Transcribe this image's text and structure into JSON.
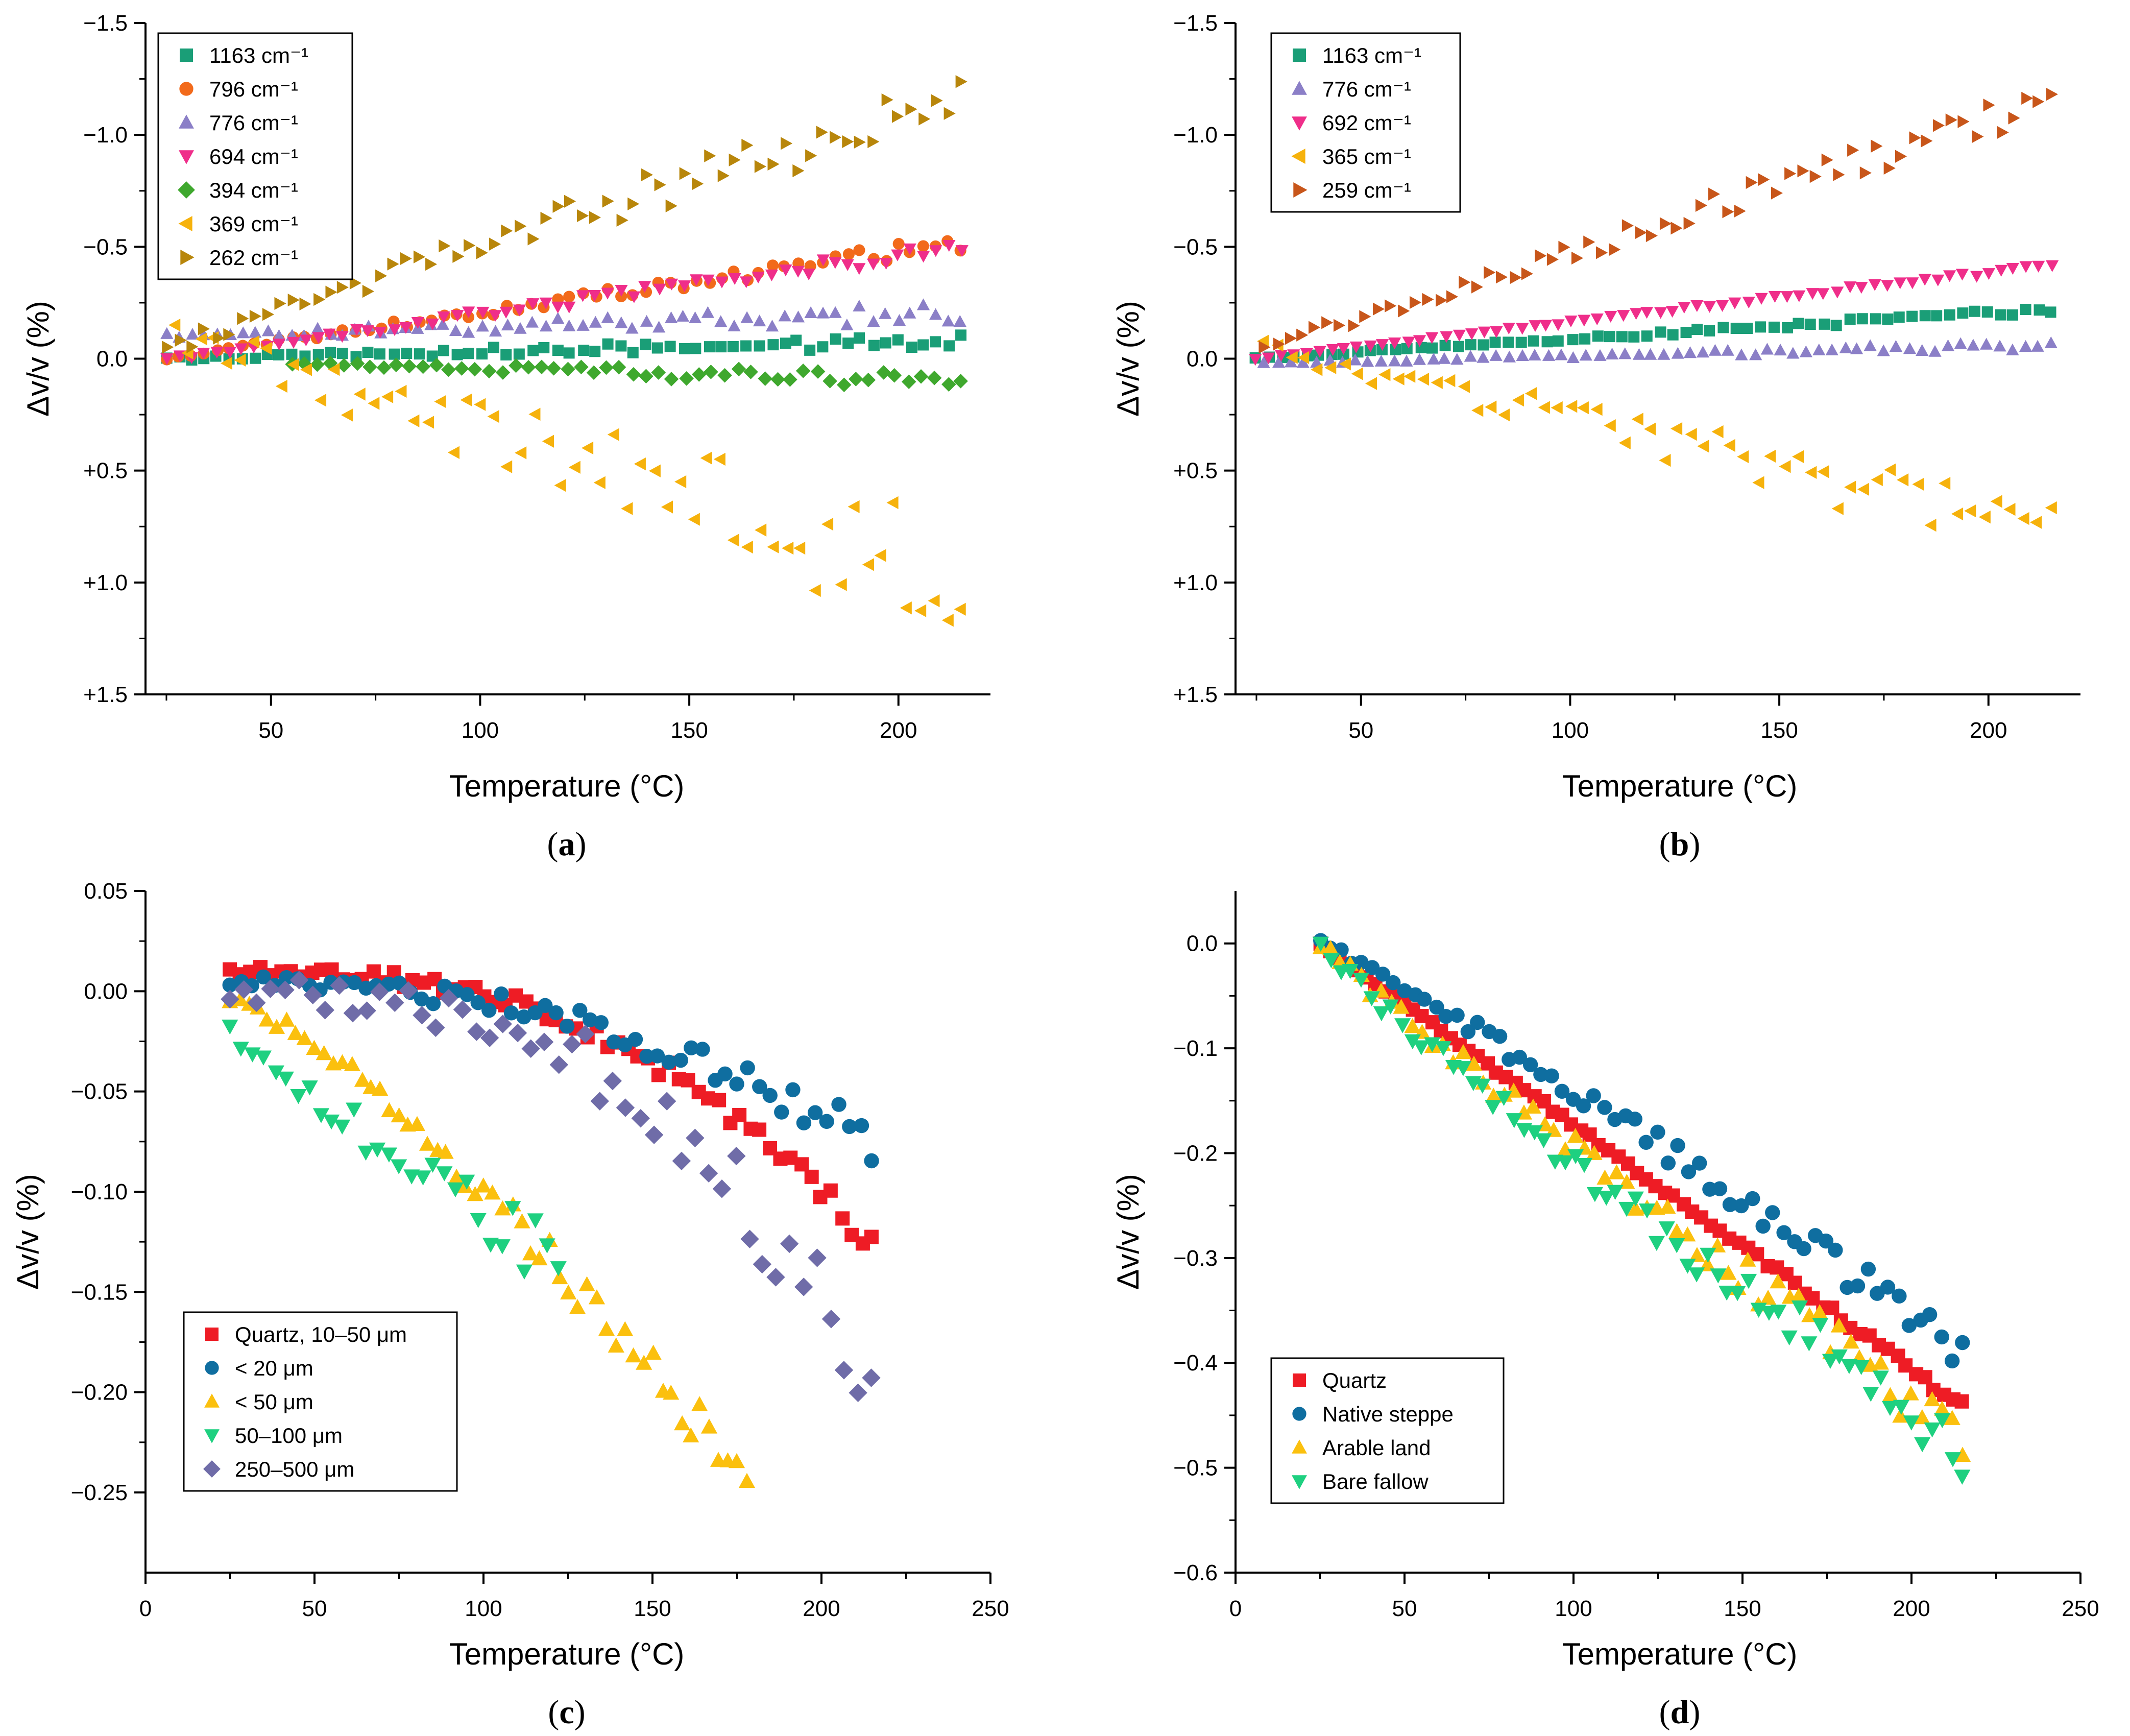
{
  "figure": {
    "panels": [
      "a",
      "b",
      "c",
      "d"
    ]
  },
  "chart_data": [
    {
      "id": "a",
      "panel_label": "a",
      "type": "scatter",
      "xlabel": "Temperature (°C)",
      "ylabel": "Δv/v (%)",
      "xlim": [
        20,
        222
      ],
      "ylim": [
        -1.5,
        1.5
      ],
      "y_inverted": true,
      "xticks": [
        50,
        100,
        150,
        200
      ],
      "yticks": [
        -1.5,
        -1.0,
        -0.5,
        0.0,
        0.5,
        1.0,
        1.5
      ],
      "ytick_labels": [
        "−1.5",
        "−1.0",
        "−0.5",
        "0.0",
        "+0.5",
        "+1.0",
        "+1.5"
      ],
      "legend_position": "top-left",
      "series": [
        {
          "name": "1163 cm⁻¹",
          "color": "#1a9e77",
          "marker": "square",
          "x0": 25,
          "x1": 215,
          "n": 64,
          "y0": 0.0,
          "y1": -0.08,
          "noise": 0.025
        },
        {
          "name": "796 cm⁻¹",
          "color": "#f26a1b",
          "marker": "circle",
          "x0": 25,
          "x1": 215,
          "n": 64,
          "y0": 0.0,
          "y1": -0.52,
          "noise": 0.03
        },
        {
          "name": "776 cm⁻¹",
          "color": "#8b7fc7",
          "marker": "triangle-up",
          "x0": 25,
          "x1": 215,
          "n": 64,
          "y0": -0.1,
          "y1": -0.2,
          "noise": 0.04
        },
        {
          "name": "694 cm⁻¹",
          "color": "#ef2e8a",
          "marker": "triangle-down",
          "x0": 25,
          "x1": 215,
          "n": 64,
          "y0": 0.0,
          "y1": -0.5,
          "noise": 0.03
        },
        {
          "name": "394 cm⁻¹",
          "color": "#3fa82e",
          "marker": "diamond",
          "x0": 55,
          "x1": 215,
          "n": 52,
          "y0": 0.02,
          "y1": 0.1,
          "noise": 0.03
        },
        {
          "name": "369 cm⁻¹",
          "color": "#f6b20c",
          "marker": "triangle-left",
          "x0": 27,
          "x1": 215,
          "n": 60,
          "y0": -0.1,
          "y1": 1.0,
          "noise": 0.22
        },
        {
          "name": "262 cm⁻¹",
          "color": "#b8860b",
          "marker": "triangle-right",
          "x0": 25,
          "x1": 215,
          "n": 64,
          "y0": -0.05,
          "y1": -1.18,
          "noise": 0.1
        }
      ]
    },
    {
      "id": "b",
      "panel_label": "b",
      "type": "scatter",
      "xlabel": "Temperature (°C)",
      "ylabel": "Δv/v (%)",
      "xlim": [
        20,
        222
      ],
      "ylim": [
        -1.5,
        1.5
      ],
      "y_inverted": true,
      "xticks": [
        50,
        100,
        150,
        200
      ],
      "yticks": [
        -1.5,
        -1.0,
        -0.5,
        0.0,
        0.5,
        1.0,
        1.5
      ],
      "ytick_labels": [
        "−1.5",
        "−1.0",
        "−0.5",
        "0.0",
        "+0.5",
        "+1.0",
        "+1.5"
      ],
      "legend_position": "top-left",
      "series": [
        {
          "name": "1163 cm⁻¹",
          "color": "#1a9e77",
          "marker": "square",
          "x0": 25,
          "x1": 215,
          "n": 64,
          "y0": 0.0,
          "y1": -0.22,
          "noise": 0.012
        },
        {
          "name": "776 cm⁻¹",
          "color": "#8b7fc7",
          "marker": "triangle-up",
          "x0": 27,
          "x1": 215,
          "n": 62,
          "y0": 0.02,
          "y1": -0.06,
          "noise": 0.015
        },
        {
          "name": "692 cm⁻¹",
          "color": "#ef2e8a",
          "marker": "triangle-down",
          "x0": 25,
          "x1": 215,
          "n": 64,
          "y0": 0.0,
          "y1": -0.42,
          "noise": 0.01
        },
        {
          "name": "365 cm⁻¹",
          "color": "#f6b20c",
          "marker": "triangle-left",
          "x0": 27,
          "x1": 215,
          "n": 60,
          "y0": -0.05,
          "y1": 0.78,
          "noise": 0.12
        },
        {
          "name": "259 cm⁻¹",
          "color": "#c8561a",
          "marker": "triangle-right",
          "x0": 27,
          "x1": 215,
          "n": 64,
          "y0": -0.05,
          "y1": -1.15,
          "noise": 0.07
        }
      ]
    },
    {
      "id": "c",
      "panel_label": "c",
      "type": "scatter",
      "xlabel": "Temperature (°C)",
      "ylabel": "Δv/v (%)",
      "xlim": [
        0,
        250
      ],
      "ylim": [
        -0.29,
        0.05
      ],
      "y_inverted": false,
      "xticks": [
        0,
        50,
        100,
        150,
        200,
        250
      ],
      "yticks": [
        0.05,
        0.0,
        -0.05,
        -0.1,
        -0.15,
        -0.2,
        -0.25
      ],
      "ytick_labels": [
        "0.05",
        "0.00",
        "−0.05",
        "−0.10",
        "−0.15",
        "−0.20",
        "−0.25"
      ],
      "legend_position": "bottom-left",
      "series": [
        {
          "name": "Quartz, 10–50 μm",
          "color": "#ee1c25",
          "marker": "square",
          "x0": 25,
          "x1": 215,
          "n": 64,
          "y0": 0.01,
          "y1": -0.125,
          "curve": 2.6,
          "noise": 0.006
        },
        {
          "name": "< 20 μm",
          "color": "#0f6ea0",
          "marker": "circle",
          "x0": 25,
          "x1": 215,
          "n": 58,
          "y0": 0.005,
          "y1": -0.075,
          "curve": 2.2,
          "noise": 0.008
        },
        {
          "name": "< 50 μm",
          "color": "#fbc00e",
          "marker": "triangle-up",
          "x0": 25,
          "x1": 178,
          "n": 56,
          "y0": -0.005,
          "y1": -0.245,
          "curve": 1.3,
          "noise": 0.01
        },
        {
          "name": "50–100 μm",
          "color": "#1ed080",
          "marker": "triangle-down",
          "x0": 25,
          "x1": 122,
          "n": 30,
          "y0": -0.02,
          "y1": -0.135,
          "curve": 0.9,
          "noise": 0.014
        },
        {
          "name": "250–500 μm",
          "color": "#6f6ca8",
          "marker": "diamond",
          "x0": 25,
          "x1": 215,
          "n": 48,
          "y0": 0.0,
          "y1": -0.195,
          "curve": 2.8,
          "noise": 0.02
        }
      ]
    },
    {
      "id": "d",
      "panel_label": "d",
      "type": "scatter",
      "xlabel": "Temperature (°C)",
      "ylabel": "Δv/v (%)",
      "xlim": [
        0,
        250
      ],
      "ylim": [
        -0.6,
        0.05
      ],
      "y_inverted": false,
      "xticks": [
        0,
        50,
        100,
        150,
        200,
        250
      ],
      "yticks": [
        0.0,
        -0.1,
        -0.2,
        -0.3,
        -0.4,
        -0.5,
        -0.6
      ],
      "ytick_labels": [
        "0.0",
        "−0.1",
        "−0.2",
        "−0.3",
        "−0.4",
        "−0.5",
        "−0.6"
      ],
      "legend_position": "bottom-left",
      "series": [
        {
          "name": "Quartz",
          "color": "#ee1c25",
          "marker": "square",
          "x0": 25,
          "x1": 215,
          "n": 70,
          "y0": 0.0,
          "y1": -0.44,
          "curve": 1.0,
          "noise": 0.004
        },
        {
          "name": "Native steppe",
          "color": "#0f6ea0",
          "marker": "circle",
          "x0": 25,
          "x1": 215,
          "n": 62,
          "y0": 0.0,
          "y1": -0.39,
          "curve": 1.1,
          "noise": 0.015
        },
        {
          "name": "Arable land",
          "color": "#fbc00e",
          "marker": "triangle-up",
          "x0": 25,
          "x1": 215,
          "n": 64,
          "y0": 0.0,
          "y1": -0.47,
          "curve": 0.95,
          "noise": 0.02
        },
        {
          "name": "Bare fallow",
          "color": "#1ed080",
          "marker": "triangle-down",
          "x0": 25,
          "x1": 215,
          "n": 64,
          "y0": 0.0,
          "y1": -0.48,
          "curve": 0.9,
          "noise": 0.022
        }
      ]
    }
  ]
}
